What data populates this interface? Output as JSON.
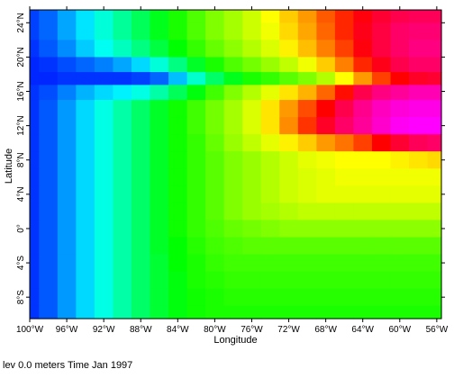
{
  "chart_data": {
    "type": "heatmap",
    "xlabel": "Longitude",
    "ylabel": "Latitude",
    "xlim": [
      -100,
      -55.5
    ],
    "ylim": [
      -10.5,
      25.5
    ],
    "x_ticks": [
      {
        "value": -100,
        "label": "100°W"
      },
      {
        "value": -96,
        "label": "96°W"
      },
      {
        "value": -92,
        "label": "92°W"
      },
      {
        "value": -88,
        "label": "88°W"
      },
      {
        "value": -84,
        "label": "84°W"
      },
      {
        "value": -80,
        "label": "80°W"
      },
      {
        "value": -76,
        "label": "76°W"
      },
      {
        "value": -72,
        "label": "72°W"
      },
      {
        "value": -68,
        "label": "68°W"
      },
      {
        "value": -64,
        "label": "64°W"
      },
      {
        "value": -60,
        "label": "60°W"
      },
      {
        "value": -56,
        "label": "56°W"
      }
    ],
    "y_ticks": [
      {
        "value": -8,
        "label": "8°S"
      },
      {
        "value": -4,
        "label": "4°S"
      },
      {
        "value": 0,
        "label": "0°"
      },
      {
        "value": 4,
        "label": "4°N"
      },
      {
        "value": 8,
        "label": "8°N"
      },
      {
        "value": 12,
        "label": "12°N"
      },
      {
        "value": 16,
        "label": "16°N"
      },
      {
        "value": 20,
        "label": "20°N"
      },
      {
        "value": 24,
        "label": "24°N"
      }
    ],
    "colormap": [
      "#0000ff",
      "#00ffff",
      "#00ff00",
      "#ffff00",
      "#ff0000",
      "#ff00ff"
    ],
    "longitudes": [
      -100,
      -98,
      -96,
      -94,
      -92,
      -90,
      -88,
      -86,
      -84,
      -82,
      -80,
      -78,
      -76,
      -74,
      -72,
      -70,
      -68,
      -66,
      -64,
      -62,
      -60,
      -58,
      -56
    ],
    "latitudes": [
      25,
      23,
      21,
      19,
      17.5,
      16,
      14,
      12,
      10,
      8,
      6,
      4,
      2,
      0,
      -2,
      -4,
      -6,
      -8,
      -10
    ],
    "values": [
      [
        0.05,
        0.08,
        0.13,
        0.18,
        0.23,
        0.28,
        0.33,
        0.38,
        0.42,
        0.46,
        0.5,
        0.53,
        0.56,
        0.6,
        0.64,
        0.68,
        0.73,
        0.77,
        0.81,
        0.84,
        0.86,
        0.87,
        0.87
      ],
      [
        0.05,
        0.08,
        0.13,
        0.18,
        0.23,
        0.28,
        0.33,
        0.38,
        0.42,
        0.46,
        0.5,
        0.53,
        0.56,
        0.59,
        0.63,
        0.67,
        0.72,
        0.77,
        0.82,
        0.85,
        0.88,
        0.89,
        0.89
      ],
      [
        0.04,
        0.07,
        0.11,
        0.16,
        0.21,
        0.25,
        0.3,
        0.35,
        0.4,
        0.44,
        0.48,
        0.51,
        0.54,
        0.57,
        0.61,
        0.65,
        0.7,
        0.75,
        0.81,
        0.85,
        0.88,
        0.9,
        0.9
      ],
      [
        0.03,
        0.04,
        0.06,
        0.08,
        0.1,
        0.13,
        0.17,
        0.23,
        0.3,
        0.37,
        0.42,
        0.46,
        0.49,
        0.52,
        0.55,
        0.59,
        0.64,
        0.7,
        0.77,
        0.82,
        0.86,
        0.88,
        0.88
      ],
      [
        0.03,
        0.03,
        0.04,
        0.04,
        0.04,
        0.04,
        0.05,
        0.08,
        0.15,
        0.24,
        0.32,
        0.38,
        0.42,
        0.44,
        0.47,
        0.5,
        0.54,
        0.6,
        0.68,
        0.75,
        0.8,
        0.83,
        0.84
      ],
      [
        0.04,
        0.06,
        0.1,
        0.14,
        0.17,
        0.19,
        0.22,
        0.27,
        0.33,
        0.39,
        0.45,
        0.5,
        0.54,
        0.58,
        0.62,
        0.66,
        0.72,
        0.79,
        0.86,
        0.9,
        0.92,
        0.94,
        0.94
      ],
      [
        0.04,
        0.07,
        0.12,
        0.17,
        0.22,
        0.27,
        0.32,
        0.37,
        0.41,
        0.45,
        0.49,
        0.53,
        0.57,
        0.62,
        0.68,
        0.74,
        0.8,
        0.86,
        0.91,
        0.95,
        0.97,
        0.98,
        0.98
      ],
      [
        0.04,
        0.07,
        0.12,
        0.17,
        0.22,
        0.27,
        0.32,
        0.37,
        0.41,
        0.45,
        0.49,
        0.53,
        0.57,
        0.62,
        0.69,
        0.76,
        0.83,
        0.88,
        0.92,
        0.96,
        0.99,
        1.0,
        1.0
      ],
      [
        0.04,
        0.07,
        0.12,
        0.17,
        0.22,
        0.27,
        0.32,
        0.37,
        0.41,
        0.44,
        0.48,
        0.52,
        0.55,
        0.58,
        0.61,
        0.64,
        0.68,
        0.71,
        0.75,
        0.8,
        0.84,
        0.87,
        0.88
      ],
      [
        0.04,
        0.07,
        0.12,
        0.17,
        0.22,
        0.27,
        0.32,
        0.37,
        0.41,
        0.44,
        0.47,
        0.5,
        0.52,
        0.54,
        0.56,
        0.58,
        0.59,
        0.6,
        0.6,
        0.6,
        0.61,
        0.62,
        0.63
      ],
      [
        0.04,
        0.07,
        0.12,
        0.17,
        0.22,
        0.27,
        0.32,
        0.37,
        0.41,
        0.44,
        0.47,
        0.5,
        0.52,
        0.54,
        0.56,
        0.57,
        0.58,
        0.59,
        0.59,
        0.59,
        0.59,
        0.59,
        0.59
      ],
      [
        0.04,
        0.07,
        0.12,
        0.17,
        0.22,
        0.27,
        0.32,
        0.37,
        0.41,
        0.44,
        0.47,
        0.5,
        0.52,
        0.54,
        0.56,
        0.57,
        0.58,
        0.58,
        0.58,
        0.58,
        0.58,
        0.58,
        0.58
      ],
      [
        0.04,
        0.07,
        0.12,
        0.17,
        0.22,
        0.27,
        0.32,
        0.37,
        0.41,
        0.44,
        0.47,
        0.5,
        0.52,
        0.53,
        0.54,
        0.55,
        0.55,
        0.55,
        0.55,
        0.55,
        0.55,
        0.55,
        0.55
      ],
      [
        0.04,
        0.07,
        0.12,
        0.17,
        0.22,
        0.27,
        0.32,
        0.37,
        0.41,
        0.44,
        0.46,
        0.48,
        0.49,
        0.5,
        0.51,
        0.51,
        0.51,
        0.51,
        0.51,
        0.51,
        0.51,
        0.51,
        0.51
      ],
      [
        0.04,
        0.07,
        0.12,
        0.17,
        0.22,
        0.27,
        0.32,
        0.37,
        0.4,
        0.43,
        0.45,
        0.46,
        0.47,
        0.47,
        0.47,
        0.47,
        0.47,
        0.47,
        0.47,
        0.47,
        0.47,
        0.47,
        0.47
      ],
      [
        0.04,
        0.07,
        0.12,
        0.17,
        0.22,
        0.27,
        0.32,
        0.36,
        0.4,
        0.42,
        0.44,
        0.45,
        0.45,
        0.45,
        0.45,
        0.45,
        0.45,
        0.45,
        0.45,
        0.45,
        0.45,
        0.45,
        0.45
      ],
      [
        0.04,
        0.07,
        0.12,
        0.17,
        0.22,
        0.27,
        0.32,
        0.36,
        0.39,
        0.42,
        0.43,
        0.44,
        0.44,
        0.44,
        0.44,
        0.44,
        0.44,
        0.44,
        0.44,
        0.44,
        0.44,
        0.44,
        0.44
      ],
      [
        0.04,
        0.07,
        0.12,
        0.17,
        0.22,
        0.27,
        0.32,
        0.36,
        0.39,
        0.41,
        0.42,
        0.43,
        0.43,
        0.43,
        0.43,
        0.43,
        0.43,
        0.43,
        0.43,
        0.43,
        0.43,
        0.43,
        0.43
      ],
      [
        0.04,
        0.07,
        0.12,
        0.17,
        0.22,
        0.27,
        0.32,
        0.36,
        0.39,
        0.41,
        0.42,
        0.42,
        0.42,
        0.42,
        0.42,
        0.42,
        0.42,
        0.42,
        0.42,
        0.42,
        0.42,
        0.42,
        0.42
      ]
    ]
  },
  "footer": {
    "text": "lev 0.0 meters Time Jan 1997"
  }
}
